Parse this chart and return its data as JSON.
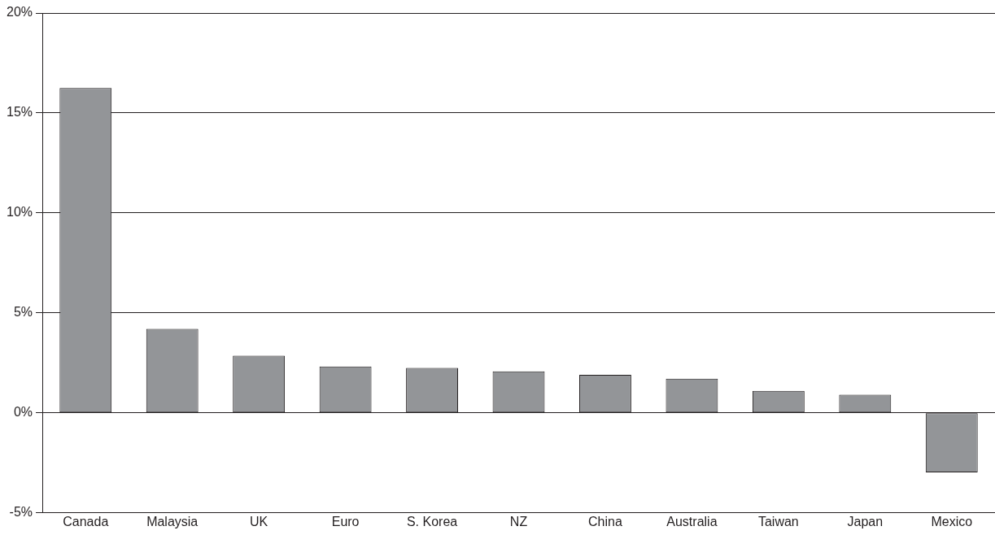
{
  "chart_data": {
    "type": "bar",
    "categories": [
      "Canada",
      "Malaysia",
      "UK",
      "Euro",
      "S. Korea",
      "NZ",
      "China",
      "Australia",
      "Taiwan",
      "Japan",
      "Mexico"
    ],
    "values": [
      16.25,
      4.2,
      2.86,
      2.32,
      2.25,
      2.08,
      1.9,
      1.71,
      1.1,
      0.91,
      -2.97
    ],
    "color": "#939598",
    "ylim": [
      -5,
      20
    ],
    "yticks": [
      {
        "value": -5,
        "label": "-5%"
      },
      {
        "value": 0,
        "label": "0%"
      },
      {
        "value": 5,
        "label": "5%"
      },
      {
        "value": 10,
        "label": "10%"
      },
      {
        "value": 15,
        "label": "15%"
      },
      {
        "value": 20,
        "label": "20%"
      }
    ],
    "grid": "y",
    "legend": false
  }
}
